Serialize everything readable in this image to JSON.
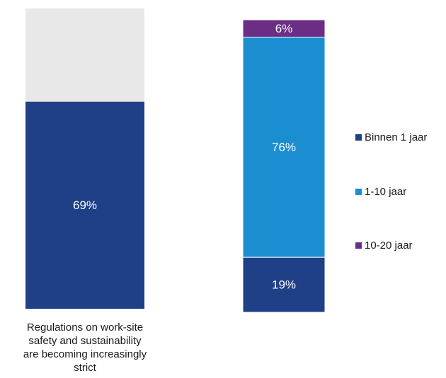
{
  "chart_data": [
    {
      "type": "bar",
      "categories": [
        "Regulations on work-site safety and sustainability are becoming increasingly strict"
      ],
      "category_lines": [
        "Regulations on work-site",
        "safety and sustainability",
        "are becoming increasingly",
        "strict"
      ],
      "series": [
        {
          "values": [
            69
          ],
          "color": "#1f3f87"
        },
        {
          "values": [
            31
          ],
          "color": "#e8e8e8"
        }
      ],
      "data_labels": [
        "69%",
        ""
      ],
      "ylim": [
        0,
        100
      ]
    },
    {
      "type": "bar",
      "stacked": true,
      "categories": [
        ""
      ],
      "series": [
        {
          "name": "Binnen 1 jaar",
          "values": [
            19
          ],
          "color": "#1f3f87",
          "label": "19%"
        },
        {
          "name": "1-10 jaar",
          "values": [
            76
          ],
          "color": "#1a8ed0",
          "label": "76%"
        },
        {
          "name": "10-20 jaar",
          "values": [
            6
          ],
          "color": "#6b2d86",
          "label": "6%"
        }
      ],
      "ylim": [
        0,
        100
      ],
      "legend_position": "right"
    }
  ]
}
